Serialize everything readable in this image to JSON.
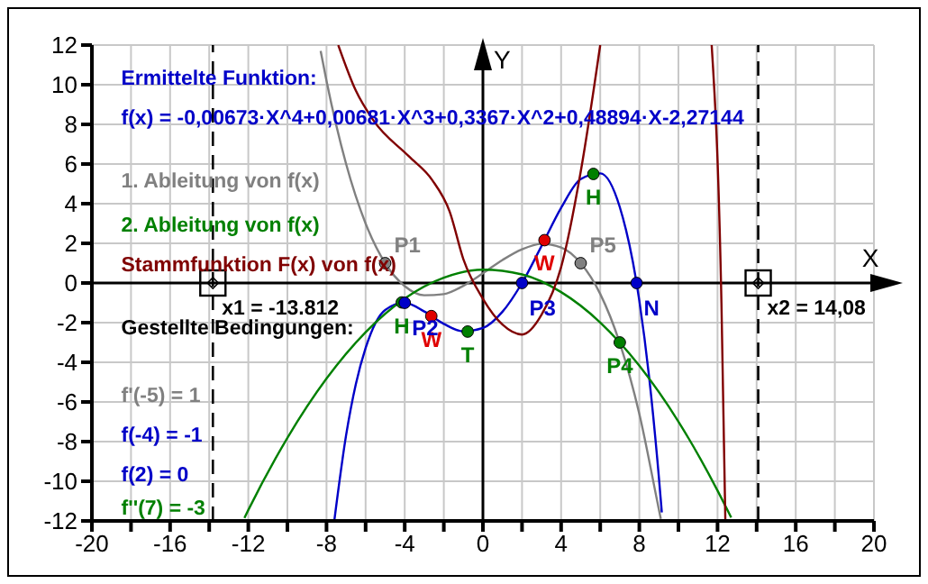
{
  "chart_data": {
    "type": "line",
    "xlabel": "X",
    "ylabel": "Y",
    "xlim": [
      -20,
      20
    ],
    "ylim": [
      -12,
      12
    ],
    "xticks": [
      -20,
      {
        "value": -18,
        "label": null
      },
      -16,
      {
        "value": -14,
        "label": null
      },
      -12,
      {
        "value": -10,
        "label": null
      },
      -8,
      {
        "value": -6,
        "label": null
      },
      -4,
      {
        "value": -2,
        "label": null
      },
      0,
      {
        "value": 2,
        "label": null
      },
      4,
      {
        "value": 6,
        "label": null
      },
      8,
      {
        "value": 10,
        "label": null
      },
      12,
      {
        "value": 14,
        "label": null
      },
      16,
      {
        "value": 18,
        "label": null
      },
      20
    ],
    "yticks": [
      -12,
      -10,
      -8,
      -6,
      -4,
      -2,
      0,
      2,
      4,
      6,
      8,
      10,
      12
    ],
    "grid": true,
    "legend": false,
    "marker": "circle",
    "line_style": "solid",
    "series": [
      {
        "marker": "none",
        "color": "#0000c8",
        "x": [
          -7.6,
          -7,
          -6.5,
          -6,
          -5,
          -4,
          -3,
          -2,
          -1,
          0,
          1,
          2,
          3,
          4,
          5,
          6,
          7,
          8,
          8.5,
          9,
          9.15
        ],
        "values": [
          -11.98,
          -7.69,
          -5.1,
          -3.28,
          -1.36,
          -1,
          -1.44,
          -2.06,
          -2.44,
          -2.27,
          -1.45,
          0,
          1.87,
          3.79,
          5.24,
          5.53,
          3.83,
          -0.89,
          -4.73,
          -9.8,
          -11.57
        ]
      },
      {
        "marker": "none",
        "name": "1. Ableitung von f(x)",
        "color": "#808080",
        "x": [
          -8.3,
          -8,
          -7,
          -6,
          -5,
          -4,
          -3,
          -2,
          -1,
          0,
          1,
          2,
          3,
          4,
          5,
          6,
          7,
          8,
          9,
          9.1
        ],
        "values": [
          11.7,
          10.19,
          6.01,
          3,
          1,
          -0.16,
          -0.62,
          -0.56,
          -0.14,
          0.49,
          1.16,
          1.7,
          1.97,
          1.79,
          1,
          -0.55,
          -3.03,
          -6.6,
          -11.42,
          -11.9
        ]
      },
      {
        "marker": "none",
        "name": "2. Ableitung von f(x)",
        "color": "#008000",
        "x": [
          -12.2,
          -12,
          -10,
          -8,
          -6,
          -4,
          -2,
          0,
          2,
          4,
          6,
          8,
          10,
          12,
          12.7
        ],
        "values": [
          -11.85,
          -11.45,
          -7.81,
          -4.82,
          -2.48,
          -0.78,
          0.27,
          0.67,
          0.43,
          -0.46,
          -1.99,
          -4.17,
          -6.99,
          -10.47,
          -11.83
        ]
      },
      {
        "marker": "none",
        "name": "Stammfunktion F(x) von f(x)",
        "color": "#800000",
        "x": [
          -7.4,
          -6.5,
          -5.6,
          -3.8,
          -2.6,
          -1.7,
          -1,
          0,
          1,
          2,
          3,
          4,
          5,
          6,
          9,
          11.7,
          12.2,
          12.4
        ],
        "values": [
          12,
          9.7,
          8.2,
          6.4,
          5.2,
          3.6,
          1.2,
          -0.8,
          -2.1,
          -2.6,
          -1.6,
          0.8,
          5.6,
          12,
          null,
          12,
          -1,
          -12
        ]
      },
      {
        "type": "scatter",
        "color": "#008000",
        "x": [
          -4.15,
          -0.78,
          5.65,
          7
        ],
        "values": [
          -0.98,
          -2.45,
          5.5,
          -3
        ],
        "value_labels": [
          "H",
          "T",
          "H",
          "P4"
        ]
      },
      {
        "type": "scatter",
        "color": "#e00000",
        "x": [
          -2.64,
          3.15
        ],
        "values": [
          -1.67,
          2.16
        ],
        "value_labels": [
          "W",
          "W"
        ]
      },
      {
        "type": "scatter",
        "color": "#0000c8",
        "x": [
          -4,
          2,
          7.86
        ],
        "values": [
          -1,
          0,
          0
        ],
        "value_labels": [
          "P2",
          "P3",
          "N"
        ]
      },
      {
        "type": "scatter",
        "color": "#808080",
        "x": [
          -5,
          5
        ],
        "values": [
          1,
          1
        ],
        "value_labels": [
          "P1",
          "P5"
        ]
      },
      {
        "type": "scatter",
        "marker": "square",
        "color": "#000000",
        "x": [
          -13.812,
          14.08
        ],
        "values": [
          0,
          0
        ]
      }
    ],
    "ref_lines": [
      {
        "axis": "x",
        "value": -13.812,
        "label": "x1 = -13.812",
        "line_style": "dashed",
        "color": "#000000"
      },
      {
        "axis": "x",
        "value": 14.08,
        "label": "x2 = 14,08",
        "line_style": "dashed",
        "color": "#000000"
      }
    ],
    "annotations": [
      "Ermittelte Funktion:",
      "f(x) = -0,00673·X^4+0,00681·X^3+0,3367·X^2+0,48894·X-2,27144",
      "Gestellte Bedingungen:",
      "f'(-5) = 1",
      "f(-4) = -1",
      "f(2) = 0",
      "f''(7) = -3"
    ]
  }
}
